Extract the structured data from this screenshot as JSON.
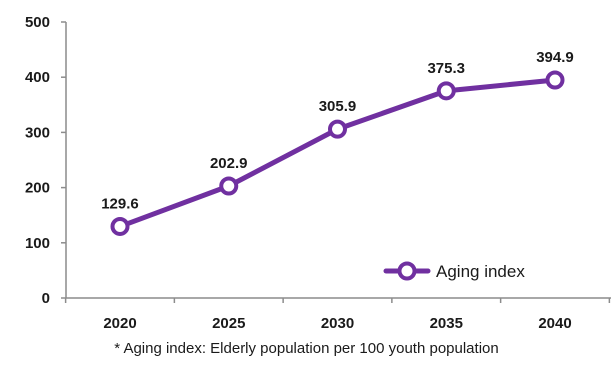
{
  "chart_data": {
    "type": "line",
    "x": [
      "2020",
      "2025",
      "2030",
      "2035",
      "2040"
    ],
    "series": [
      {
        "name": "Aging index",
        "values": [
          129.6,
          202.9,
          305.9,
          375.3,
          394.9
        ],
        "color": "#7030a0"
      }
    ],
    "ylim": [
      0,
      500
    ],
    "yticks": [
      "0",
      "100",
      "200",
      "300",
      "400",
      "500"
    ],
    "data_labels": [
      "129.6",
      "202.9",
      "305.9",
      "375.3",
      "394.9"
    ],
    "legend_position": "bottom-right",
    "grid": false
  },
  "footnote": "* Aging index: Elderly population per 100 youth population"
}
